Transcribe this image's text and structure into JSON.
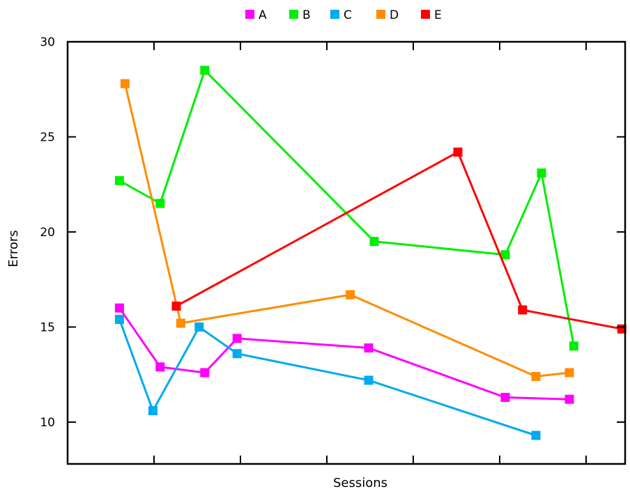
{
  "chart_data": {
    "type": "line",
    "title": "",
    "xlabel": "Sessions",
    "ylabel": "Errors",
    "ylim": [
      7.8,
      30
    ],
    "yticks": [
      10,
      15,
      20,
      25,
      30
    ],
    "xlim": [
      0,
      1
    ],
    "xticks": [
      0.155,
      0.31,
      0.465,
      0.62,
      0.775,
      0.93
    ],
    "grid": false,
    "legend_position": "top-center",
    "series": [
      {
        "name": "A",
        "color": "#ff00ff",
        "x": [
          0.093,
          0.166,
          0.246,
          0.304,
          0.54,
          0.785,
          0.9
        ],
        "y": [
          16.0,
          12.9,
          12.6,
          14.4,
          13.9,
          11.3,
          11.2
        ]
      },
      {
        "name": "B",
        "color": "#00ee00",
        "x": [
          0.093,
          0.166,
          0.246,
          0.55,
          0.785,
          0.85,
          0.908
        ],
        "y": [
          22.7,
          21.5,
          28.5,
          19.5,
          18.8,
          23.1,
          14.0
        ]
      },
      {
        "name": "C",
        "color": "#00aaee",
        "x": [
          0.093,
          0.153,
          0.236,
          0.304,
          0.54,
          0.84
        ],
        "y": [
          15.4,
          10.6,
          15.0,
          13.6,
          12.2,
          9.3
        ]
      },
      {
        "name": "D",
        "color": "#ff8c00",
        "x": [
          0.103,
          0.203,
          0.507,
          0.84,
          0.9
        ],
        "y": [
          27.8,
          15.2,
          16.7,
          12.4,
          12.6
        ]
      },
      {
        "name": "E",
        "color": "#ff0000",
        "x": [
          0.195,
          0.7,
          0.816,
          0.994
        ],
        "y": [
          16.1,
          24.2,
          15.9,
          14.9
        ]
      }
    ]
  }
}
